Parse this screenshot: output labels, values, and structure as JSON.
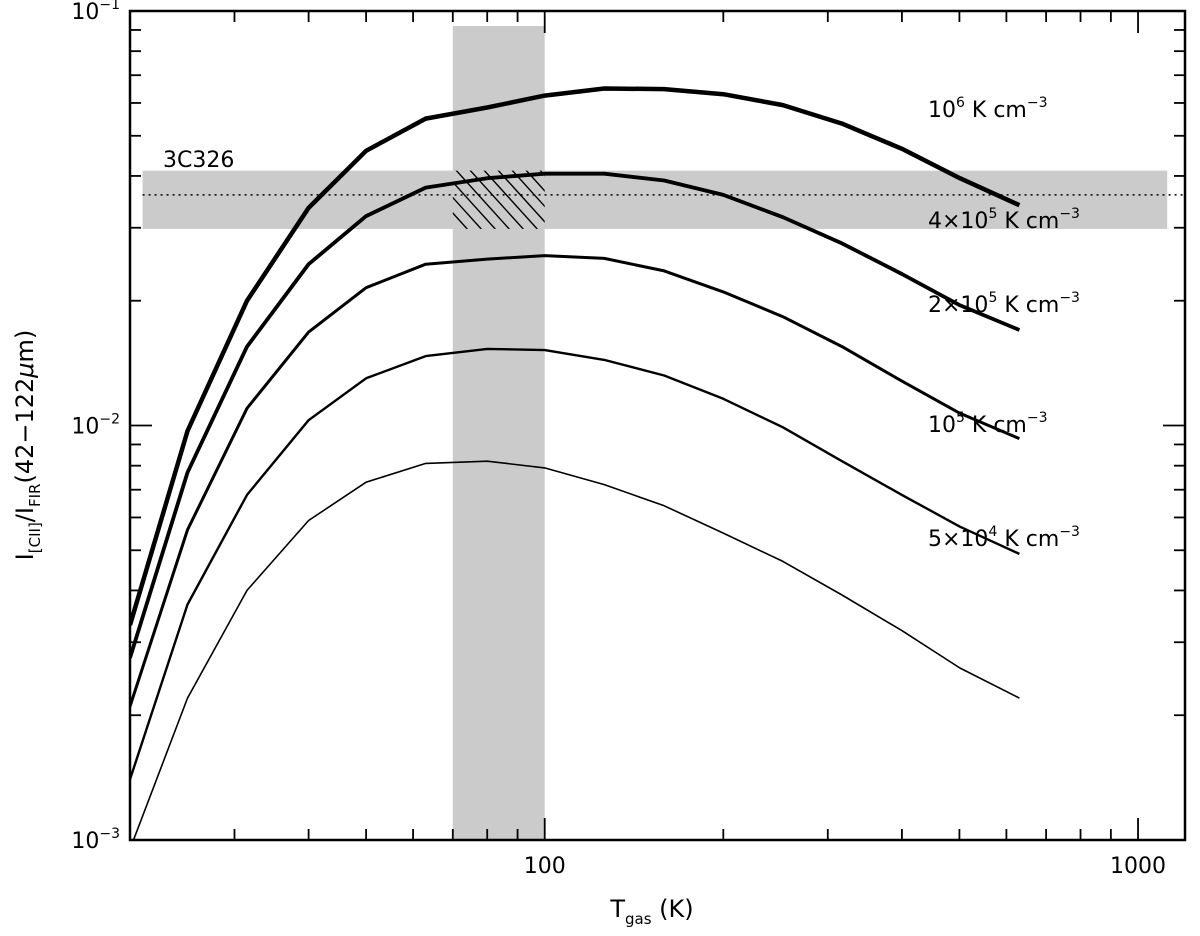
{
  "chart_data": {
    "type": "line",
    "xlabel": {
      "main": "T",
      "sub": "gas",
      "units": " (K)"
    },
    "ylabel": {
      "I1": "I",
      "sub1": "[CII]",
      "slash": "/I",
      "sub2": "FIR",
      "tail": "(42−122",
      "mu": "μ",
      "unit": "m)"
    },
    "xscale": "log",
    "yscale": "log",
    "xlim": [
      20,
      1200
    ],
    "ylim": [
      0.001,
      0.1
    ],
    "x_ticks": [
      {
        "value": 100,
        "label": "100"
      },
      {
        "value": 1000,
        "label": "1000"
      }
    ],
    "y_ticks": [
      {
        "value": 0.001,
        "base": "10",
        "exp": "−3"
      },
      {
        "value": 0.01,
        "base": "10",
        "exp": "−2"
      },
      {
        "value": 0.1,
        "base": "10",
        "exp": "−1"
      }
    ],
    "x": [
      20,
      25,
      31.5,
      40,
      50,
      63,
      80,
      100,
      126,
      159,
      200,
      252,
      317,
      400,
      501,
      631
    ],
    "series": [
      {
        "name": "10⁶ K cm⁻³",
        "label": {
          "pre": "10",
          "exp": "6",
          "post": " K cm",
          "post_exp": "−3"
        },
        "stroke": 4.5,
        "values": [
          0.0033,
          0.0097,
          0.02,
          0.0335,
          0.046,
          0.055,
          0.0585,
          0.0625,
          0.065,
          0.0648,
          0.063,
          0.0593,
          0.0535,
          0.0465,
          0.0395,
          0.034
        ]
      },
      {
        "name": "4×10⁵ K cm⁻³",
        "label": {
          "pre": "4×10",
          "exp": "5",
          "post": " K cm",
          "post_exp": "−3"
        },
        "stroke": 3.8,
        "values": [
          0.00275,
          0.0077,
          0.0155,
          0.0245,
          0.032,
          0.0375,
          0.0395,
          0.0405,
          0.0405,
          0.039,
          0.036,
          0.0318,
          0.0275,
          0.0232,
          0.0195,
          0.017
        ]
      },
      {
        "name": "2×10⁵ K cm⁻³",
        "label": {
          "pre": "2×10",
          "exp": "5",
          "post": " K cm",
          "post_exp": "−3"
        },
        "stroke": 3.0,
        "values": [
          0.0021,
          0.0056,
          0.011,
          0.0168,
          0.0215,
          0.0245,
          0.0252,
          0.0257,
          0.0253,
          0.0236,
          0.021,
          0.0183,
          0.0155,
          0.0128,
          0.0107,
          0.0093
        ]
      },
      {
        "name": "10⁵ K cm⁻³",
        "label": {
          "pre": "10",
          "exp": "5",
          "post": " K cm",
          "post_exp": "−3"
        },
        "stroke": 2.4,
        "values": [
          0.0014,
          0.0037,
          0.0068,
          0.0103,
          0.013,
          0.0147,
          0.0153,
          0.0152,
          0.0144,
          0.0132,
          0.0116,
          0.0099,
          0.0082,
          0.0068,
          0.0057,
          0.0049
        ]
      },
      {
        "name": "5×10⁴ K cm⁻³",
        "label": {
          "pre": "5×10",
          "exp": "4",
          "post": " K cm",
          "post_exp": "−3"
        },
        "stroke": 1.6,
        "values": [
          0.00095,
          0.0022,
          0.004,
          0.0059,
          0.0073,
          0.0081,
          0.0082,
          0.0079,
          0.0072,
          0.0064,
          0.0055,
          0.0047,
          0.0039,
          0.0032,
          0.0026,
          0.0022
        ]
      }
    ],
    "observation": {
      "label": "3C326",
      "value": 0.036,
      "band": [
        0.0298,
        0.0412
      ],
      "temperature_band": [
        70,
        100
      ]
    },
    "shade_color": "#cbcbcb",
    "line_color": "#000000"
  }
}
